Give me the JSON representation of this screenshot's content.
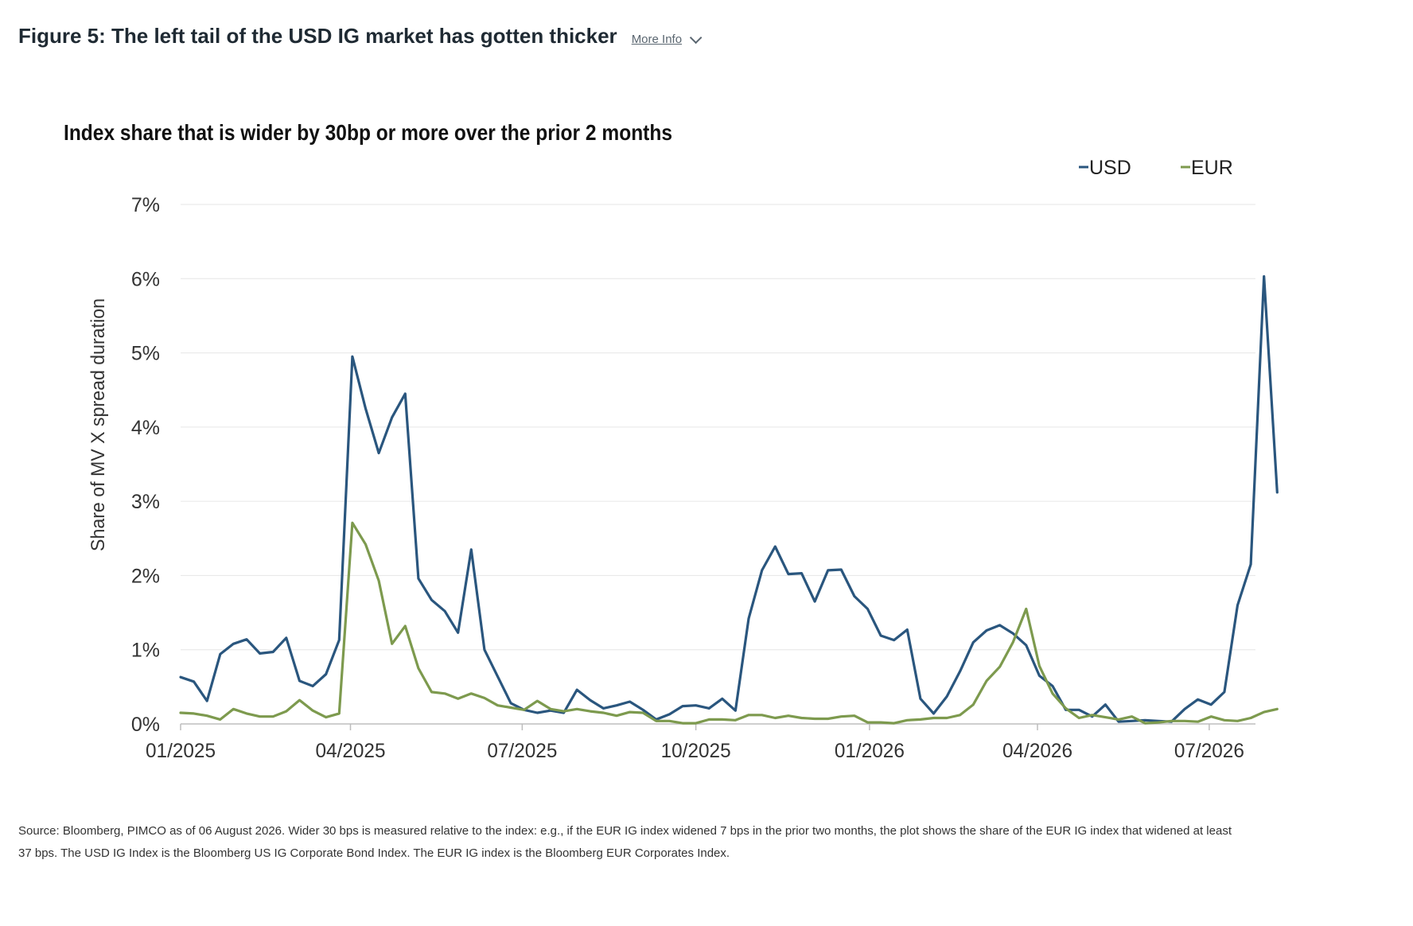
{
  "header": {
    "title": "Figure 5: The left tail of the USD IG market has gotten thicker",
    "more_info_label": "More Info"
  },
  "chart_data": {
    "type": "line",
    "title": "Index share that is wider by 30bp or more over the prior 2 months",
    "ylabel": "Share of MV X spread duration",
    "xlabel": "",
    "ylim": [
      0,
      7
    ],
    "yticks": [
      0,
      1,
      2,
      3,
      4,
      5,
      6,
      7
    ],
    "ytick_labels": [
      "0%",
      "1%",
      "2%",
      "3%",
      "4%",
      "5%",
      "6%",
      "7%"
    ],
    "xtick_labels": [
      "01/2025",
      "04/2025",
      "07/2025",
      "10/2025",
      "01/2026",
      "04/2026",
      "07/2026"
    ],
    "xtick_weeks": [
      0,
      12.857,
      25.857,
      39.0,
      52.143,
      64.857,
      77.857
    ],
    "x_unit": "weeks from 01/2025",
    "grid": "horizontal",
    "legend_position": "top-right",
    "series": [
      {
        "name": "USD",
        "color": "#2a567e",
        "values": [
          0.63,
          0.57,
          0.31,
          0.94,
          1.08,
          1.14,
          0.95,
          0.97,
          1.16,
          0.58,
          0.51,
          0.67,
          1.13,
          4.95,
          4.25,
          3.65,
          4.13,
          4.45,
          1.96,
          1.67,
          1.52,
          1.23,
          2.35,
          1.0,
          0.64,
          0.28,
          0.19,
          0.15,
          0.18,
          0.15,
          0.46,
          0.32,
          0.21,
          0.25,
          0.3,
          0.19,
          0.06,
          0.13,
          0.24,
          0.25,
          0.21,
          0.34,
          0.18,
          1.42,
          2.07,
          2.39,
          2.02,
          2.03,
          1.65,
          2.07,
          2.08,
          1.72,
          1.55,
          1.19,
          1.13,
          1.27,
          0.34,
          0.14,
          0.37,
          0.71,
          1.1,
          1.26,
          1.33,
          1.22,
          1.06,
          0.65,
          0.51,
          0.19,
          0.19,
          0.1,
          0.26,
          0.03,
          0.04,
          0.05,
          0.04,
          0.03,
          0.2,
          0.33,
          0.26,
          0.43,
          1.6,
          2.15,
          6.03,
          3.12
        ]
      },
      {
        "name": "EUR",
        "color": "#7d9a4e",
        "values": [
          0.15,
          0.14,
          0.11,
          0.06,
          0.2,
          0.14,
          0.1,
          0.1,
          0.17,
          0.32,
          0.18,
          0.09,
          0.14,
          2.71,
          2.42,
          1.93,
          1.08,
          1.32,
          0.75,
          0.43,
          0.41,
          0.34,
          0.41,
          0.35,
          0.25,
          0.22,
          0.19,
          0.31,
          0.2,
          0.17,
          0.2,
          0.17,
          0.15,
          0.11,
          0.16,
          0.15,
          0.04,
          0.04,
          0.01,
          0.01,
          0.06,
          0.06,
          0.05,
          0.12,
          0.12,
          0.08,
          0.11,
          0.08,
          0.07,
          0.07,
          0.1,
          0.11,
          0.02,
          0.02,
          0.01,
          0.05,
          0.06,
          0.08,
          0.08,
          0.12,
          0.26,
          0.58,
          0.77,
          1.1,
          1.55,
          0.78,
          0.41,
          0.21,
          0.08,
          0.12,
          0.09,
          0.06,
          0.1,
          0.01,
          0.02,
          0.04,
          0.04,
          0.03,
          0.1,
          0.05,
          0.04,
          0.08,
          0.16,
          0.2
        ]
      }
    ]
  },
  "footer": {
    "source_line1": "Source: Bloomberg, PIMCO as of 06 August 2026. Wider 30 bps is measured relative to the index: e.g., if the EUR IG index widened 7 bps in the prior two months, the plot shows the share of the EUR IG index that widened at least",
    "source_line2": "37 bps. The USD IG Index is the Bloomberg US IG Corporate Bond Index. The EUR IG index is the Bloomberg EUR Corporates Index."
  }
}
